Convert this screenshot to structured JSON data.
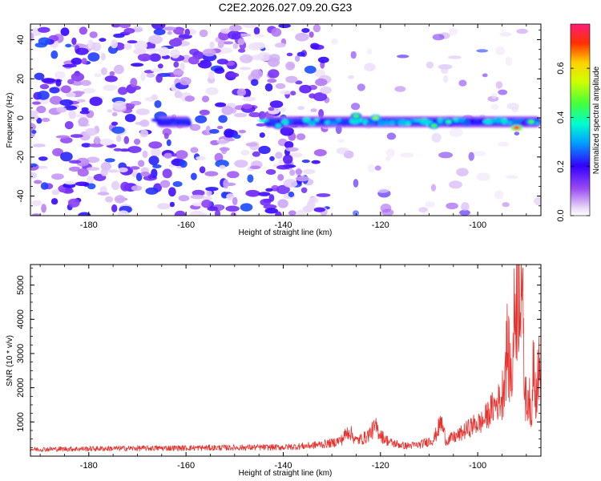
{
  "figure_title": "C2E2.2026.027.09.20.G23",
  "chart_data": [
    {
      "type": "heatmap",
      "name": "spectrogram",
      "title": "C2E2.2026.027.09.20.G23",
      "xlabel": "Height of straight line (km)",
      "ylabel": "Frequency (Hz)",
      "xlim": [
        -192,
        -87
      ],
      "ylim": [
        -50,
        48
      ],
      "xticks": [
        -180,
        -160,
        -140,
        -120,
        -100
      ],
      "yticks": [
        -40,
        -20,
        0,
        20,
        40
      ],
      "colorbar": {
        "label": "Normalized spectral amplitude",
        "range": [
          0,
          0.78
        ],
        "ticks": [
          0.0,
          0.2,
          0.4,
          0.6
        ],
        "tick_labels": [
          "0.0",
          "0.2",
          "0.4",
          "0.6"
        ]
      },
      "signal_band": {
        "freq_hz": -2,
        "segments": [
          {
            "x_start": -166,
            "x_end": -159,
            "amplitude": 0.22
          },
          {
            "x_start": -144,
            "x_end": -87,
            "amplitude": 0.35
          }
        ],
        "peaks": [
          {
            "x": -141,
            "freq": -4,
            "amplitude": 0.35
          },
          {
            "x": -125,
            "freq": 1,
            "amplitude": 0.45
          },
          {
            "x": -121,
            "freq": 0,
            "amplitude": 0.5
          },
          {
            "x": -109,
            "freq": -4,
            "amplitude": 0.45
          },
          {
            "x": -106,
            "freq": -2,
            "amplitude": 0.4
          },
          {
            "x": -92,
            "freq": -5,
            "amplitude": 0.78
          },
          {
            "x": -89,
            "freq": -2,
            "amplitude": 0.45
          }
        ]
      },
      "noise": {
        "dense_until_x": -131,
        "amplitude_range": [
          0.02,
          0.25
        ]
      }
    },
    {
      "type": "line",
      "name": "snr",
      "xlabel": "Height of straight line (km)",
      "ylabel": "SNR (10 * v/v)",
      "xlim": [
        -192,
        -87
      ],
      "ylim": [
        0,
        5600
      ],
      "xticks": [
        -180,
        -160,
        -140,
        -120,
        -100
      ],
      "yticks": [
        1000,
        2000,
        3000,
        4000,
        5000
      ],
      "color": "#e8322e",
      "series": [
        {
          "name": "SNR",
          "x": [
            -192,
            -170,
            -150,
            -140,
            -135,
            -130,
            -128,
            -126.5,
            -125,
            -123,
            -121,
            -119.5,
            -118,
            -115,
            -112,
            -109,
            -107.5,
            -106.5,
            -104,
            -101,
            -99,
            -97,
            -95,
            -94,
            -93,
            -92.3,
            -91.5,
            -91,
            -90.5,
            -90,
            -89.5,
            -89,
            -88.5,
            -88,
            -87.5,
            -87
          ],
          "y": [
            200,
            230,
            250,
            260,
            300,
            380,
            480,
            750,
            450,
            550,
            850,
            550,
            400,
            300,
            330,
            500,
            1000,
            450,
            600,
            900,
            1000,
            1400,
            1700,
            3200,
            2200,
            4500,
            5100,
            5700,
            2500,
            1500,
            2000,
            700,
            3300,
            1800,
            2600,
            2000
          ]
        }
      ]
    }
  ],
  "colors": {
    "line": "#e8322e",
    "axis": "#000000"
  }
}
